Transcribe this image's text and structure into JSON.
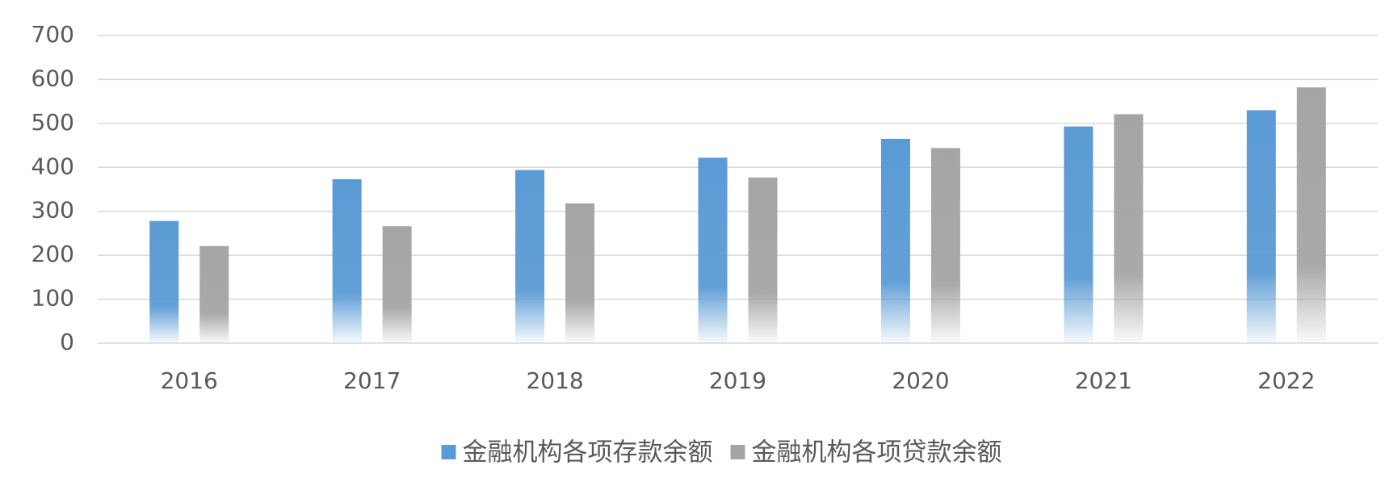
{
  "chart_data": {
    "type": "bar",
    "categories": [
      "2016",
      "2017",
      "2018",
      "2019",
      "2020",
      "2021",
      "2022"
    ],
    "series": [
      {
        "name": "金融机构各项存款余额",
        "color": "#5b9bd5",
        "values": [
          278,
          373,
          394,
          422,
          465,
          493,
          530
        ]
      },
      {
        "name": "金融机构各项贷款余额",
        "color": "#a5a5a5",
        "values": [
          221,
          266,
          318,
          377,
          444,
          521,
          582
        ]
      }
    ],
    "ylim": [
      0,
      700
    ],
    "yticks": [
      0,
      100,
      200,
      300,
      400,
      500,
      600,
      700
    ],
    "grid": true,
    "legend": "bottom"
  }
}
